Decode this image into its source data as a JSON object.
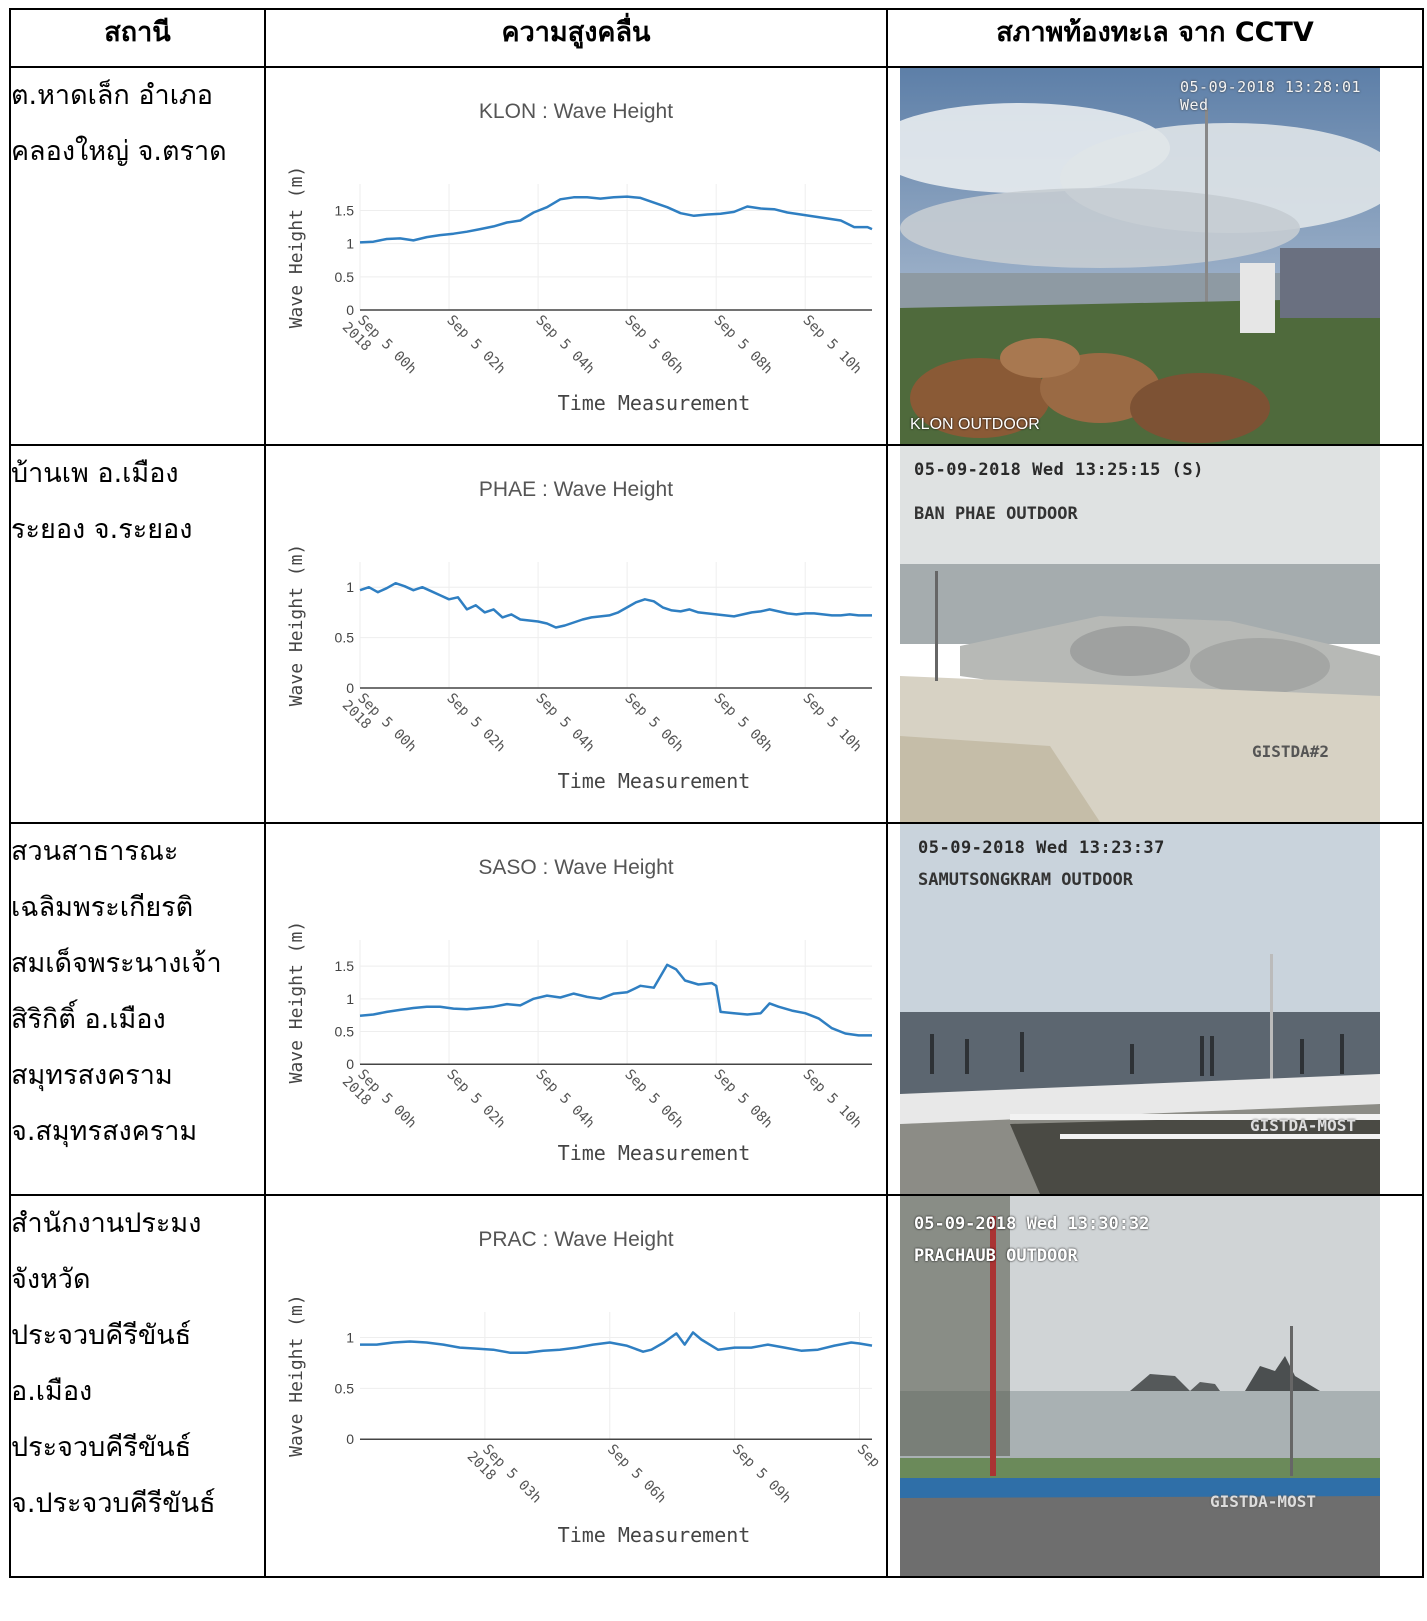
{
  "table": {
    "headers": {
      "station": "สถานี",
      "wave": "ความสูงคลื่น",
      "cctv": "สภาพท้องทะเล จาก CCTV"
    }
  },
  "rows": [
    {
      "station_lines": [
        "ต.หาดเล็ก อำเภอ",
        "คลองใหญ่ จ.ตราด"
      ],
      "camera": {
        "timestamp": "05-09-2018 13:28:01 Wed",
        "overlay": "KLON OUTDOOR",
        "watermark": ""
      }
    },
    {
      "station_lines": [
        "บ้านเพ อ.เมือง",
        "ระยอง จ.ระยอง"
      ],
      "camera": {
        "timestamp": "05-09-2018 Wed 13:25:15 (S)",
        "overlay": "BAN PHAE OUTDOOR",
        "watermark": "GISTDA#2"
      }
    },
    {
      "station_lines": [
        "สวนสาธารณะ",
        "เฉลิมพระเกียรติ",
        "สมเด็จพระนางเจ้า",
        "สิริกิติ์ อ.เมือง",
        "สมุทรสงคราม",
        "จ.สมุทรสงคราม"
      ],
      "camera": {
        "timestamp": "05-09-2018 Wed 13:23:37",
        "overlay": "SAMUTSONGKRAM OUTDOOR",
        "watermark": "GISTDA-MOST"
      }
    },
    {
      "station_lines": [
        "สำนักงานประมง",
        "จังหวัด",
        "ประจวบคีรีขันธ์",
        "อ.เมือง",
        "ประจวบคีรีขันธ์",
        "จ.ประจวบคีรีขันธ์"
      ],
      "camera": {
        "timestamp": "05-09-2018 Wed 13:30:32",
        "overlay": "PRACHAUB OUTDOOR",
        "watermark": "GISTDA-MOST"
      }
    }
  ],
  "chart_data": [
    {
      "type": "line",
      "title": "KLON : Wave Height",
      "xlabel": "Time Measurement",
      "ylabel": "Wave Height (m)",
      "ylim": [
        0,
        1.9
      ],
      "yticks": [
        "0",
        "0.5",
        "1",
        "1.5"
      ],
      "ytick_values": [
        0,
        0.5,
        1,
        1.5
      ],
      "xticks": [
        "Sep 5 00h|2018",
        "Sep 5 02h",
        "Sep 5 04h",
        "Sep 5 06h",
        "Sep 5 08h",
        "Sep 5 10h"
      ],
      "xtick_hours": [
        0,
        2,
        4,
        6,
        8,
        10
      ],
      "xlim": [
        0,
        11.5
      ],
      "series": [
        {
          "x": [
            0,
            0.3,
            0.6,
            0.9,
            1.2,
            1.5,
            1.8,
            2.1,
            2.4,
            2.7,
            3.0,
            3.3,
            3.6,
            3.9,
            4.2,
            4.5,
            4.8,
            5.1,
            5.4,
            5.7,
            6.0,
            6.3,
            6.6,
            6.9,
            7.2,
            7.5,
            7.8,
            8.1,
            8.4,
            8.7,
            9.0,
            9.3,
            9.6,
            9.9,
            10.2,
            10.5,
            10.8,
            11.1,
            11.4,
            11.5
          ],
          "values": [
            1.02,
            1.03,
            1.07,
            1.08,
            1.05,
            1.1,
            1.13,
            1.15,
            1.18,
            1.22,
            1.26,
            1.32,
            1.35,
            1.47,
            1.55,
            1.67,
            1.7,
            1.7,
            1.68,
            1.7,
            1.71,
            1.69,
            1.62,
            1.55,
            1.46,
            1.42,
            1.44,
            1.45,
            1.48,
            1.56,
            1.53,
            1.52,
            1.47,
            1.44,
            1.41,
            1.38,
            1.35,
            1.25,
            1.25,
            1.22
          ]
        }
      ]
    },
    {
      "type": "line",
      "title": "PHAE : Wave Height",
      "xlabel": "Time Measurement",
      "ylabel": "Wave Height (m)",
      "ylim": [
        0,
        1.25
      ],
      "yticks": [
        "0",
        "0.5",
        "1"
      ],
      "ytick_values": [
        0,
        0.5,
        1
      ],
      "xticks": [
        "Sep 5 00h|2018",
        "Sep 5 02h",
        "Sep 5 04h",
        "Sep 5 06h",
        "Sep 5 08h",
        "Sep 5 10h"
      ],
      "xtick_hours": [
        0,
        2,
        4,
        6,
        8,
        10
      ],
      "xlim": [
        0,
        11.5
      ],
      "series": [
        {
          "x": [
            0,
            0.2,
            0.4,
            0.6,
            0.8,
            1.0,
            1.2,
            1.4,
            1.6,
            1.8,
            2.0,
            2.2,
            2.4,
            2.6,
            2.8,
            3.0,
            3.2,
            3.4,
            3.6,
            3.8,
            4.0,
            4.2,
            4.4,
            4.6,
            4.8,
            5.0,
            5.2,
            5.4,
            5.6,
            5.8,
            6.0,
            6.2,
            6.4,
            6.6,
            6.8,
            7.0,
            7.2,
            7.4,
            7.6,
            7.8,
            8.0,
            8.2,
            8.4,
            8.6,
            8.8,
            9.0,
            9.2,
            9.4,
            9.6,
            9.8,
            10.0,
            10.2,
            10.4,
            10.6,
            10.8,
            11.0,
            11.2,
            11.4,
            11.5
          ],
          "values": [
            0.97,
            1.0,
            0.95,
            0.99,
            1.04,
            1.01,
            0.97,
            1.0,
            0.96,
            0.92,
            0.88,
            0.9,
            0.78,
            0.82,
            0.75,
            0.78,
            0.7,
            0.73,
            0.68,
            0.67,
            0.66,
            0.64,
            0.6,
            0.62,
            0.65,
            0.68,
            0.7,
            0.71,
            0.72,
            0.75,
            0.8,
            0.85,
            0.88,
            0.86,
            0.8,
            0.77,
            0.76,
            0.78,
            0.75,
            0.74,
            0.73,
            0.72,
            0.71,
            0.73,
            0.75,
            0.76,
            0.78,
            0.76,
            0.74,
            0.73,
            0.74,
            0.74,
            0.73,
            0.72,
            0.72,
            0.73,
            0.72,
            0.72,
            0.72
          ]
        }
      ]
    },
    {
      "type": "line",
      "title": "SASO : Wave Height",
      "xlabel": "Time Measurement",
      "ylabel": "Wave Height (m)",
      "ylim": [
        0,
        1.9
      ],
      "yticks": [
        "0",
        "0.5",
        "1",
        "1.5"
      ],
      "ytick_values": [
        0,
        0.5,
        1,
        1.5
      ],
      "xticks": [
        "Sep 5 00h|2018",
        "Sep 5 02h",
        "Sep 5 04h",
        "Sep 5 06h",
        "Sep 5 08h",
        "Sep 5 10h"
      ],
      "xtick_hours": [
        0,
        2,
        4,
        6,
        8,
        10
      ],
      "xlim": [
        0,
        11.5
      ],
      "series": [
        {
          "x": [
            0,
            0.3,
            0.6,
            0.9,
            1.2,
            1.5,
            1.8,
            2.1,
            2.4,
            2.7,
            3.0,
            3.3,
            3.6,
            3.9,
            4.2,
            4.5,
            4.8,
            5.1,
            5.4,
            5.7,
            6.0,
            6.3,
            6.6,
            6.9,
            7.1,
            7.3,
            7.6,
            7.9,
            8.0,
            8.1,
            8.4,
            8.7,
            9.0,
            9.2,
            9.4,
            9.7,
            10.0,
            10.3,
            10.6,
            10.9,
            11.2,
            11.5
          ],
          "values": [
            0.74,
            0.76,
            0.8,
            0.83,
            0.86,
            0.88,
            0.88,
            0.85,
            0.84,
            0.86,
            0.88,
            0.92,
            0.9,
            1.0,
            1.05,
            1.02,
            1.08,
            1.03,
            1.0,
            1.08,
            1.1,
            1.2,
            1.17,
            1.52,
            1.45,
            1.28,
            1.22,
            1.24,
            1.2,
            0.8,
            0.78,
            0.76,
            0.78,
            0.93,
            0.88,
            0.82,
            0.78,
            0.7,
            0.55,
            0.47,
            0.44,
            0.44
          ]
        }
      ]
    },
    {
      "type": "line",
      "title": "PRAC : Wave Height",
      "xlabel": "Time Measurement",
      "ylabel": "Wave Height (m)",
      "ylim": [
        0,
        1.25
      ],
      "yticks": [
        "0",
        "0.5",
        "1"
      ],
      "ytick_values": [
        0,
        0.5,
        1
      ],
      "xticks": [
        "Sep 5 03h|2018",
        "Sep 5 06h",
        "Sep 5 09h",
        "Sep"
      ],
      "xtick_hours": [
        3,
        6,
        9,
        12
      ],
      "xlim": [
        0,
        12.3
      ],
      "series": [
        {
          "x": [
            0,
            0.4,
            0.8,
            1.2,
            1.6,
            2.0,
            2.4,
            2.8,
            3.2,
            3.6,
            4.0,
            4.4,
            4.8,
            5.2,
            5.6,
            6.0,
            6.4,
            6.8,
            7.0,
            7.3,
            7.6,
            7.8,
            8.0,
            8.2,
            8.6,
            9.0,
            9.4,
            9.8,
            10.2,
            10.6,
            11.0,
            11.4,
            11.8,
            12.0,
            12.3
          ],
          "values": [
            0.93,
            0.93,
            0.95,
            0.96,
            0.95,
            0.93,
            0.9,
            0.89,
            0.88,
            0.85,
            0.85,
            0.87,
            0.88,
            0.9,
            0.93,
            0.95,
            0.92,
            0.86,
            0.88,
            0.95,
            1.04,
            0.93,
            1.05,
            0.98,
            0.88,
            0.9,
            0.9,
            0.93,
            0.9,
            0.87,
            0.88,
            0.92,
            0.95,
            0.94,
            0.92
          ]
        }
      ]
    }
  ]
}
